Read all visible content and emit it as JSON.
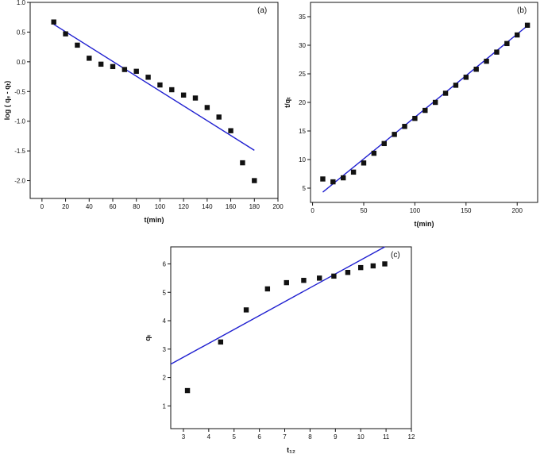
{
  "chart_data": [
    {
      "type": "scatter",
      "panel_label": "(a)",
      "xlabel": "t(min)",
      "ylabel": "log ( qₑ - qₜ)",
      "xlim": [
        -10,
        200
      ],
      "ylim": [
        -2.3,
        1.0
      ],
      "x_ticks": [
        0,
        20,
        40,
        60,
        80,
        100,
        120,
        140,
        160,
        180,
        200
      ],
      "y_ticks": [
        1.0,
        0.5,
        0.0,
        -0.5,
        -1.0,
        -1.5,
        -2.0
      ],
      "y_tick_labels": [
        "1.0",
        "0.5",
        "0.0",
        "-0.5",
        "-1.0",
        "-1.5",
        "-2.0"
      ],
      "grid": false,
      "series": [
        {
          "x": [
            10,
            20,
            30,
            40,
            50,
            60,
            70,
            80,
            90,
            100,
            110,
            120,
            130,
            140,
            150,
            160,
            170,
            180
          ],
          "y": [
            0.67,
            0.47,
            0.28,
            0.06,
            -0.04,
            -0.08,
            -0.13,
            -0.16,
            -0.26,
            -0.39,
            -0.47,
            -0.56,
            -0.61,
            -0.77,
            -0.93,
            -1.16,
            -1.7,
            -2.0
          ]
        }
      ],
      "fit_line": {
        "x": [
          10,
          180
        ],
        "y": [
          0.63,
          -1.49
        ],
        "color": "#1f1fd0"
      }
    },
    {
      "type": "scatter",
      "panel_label": "(b)",
      "xlabel": "t(min)",
      "ylabel": "t/qₜ",
      "xlim": [
        -2,
        220
      ],
      "ylim": [
        2.5,
        37.5
      ],
      "x_ticks": [
        0,
        50,
        100,
        150,
        200
      ],
      "y_ticks": [
        5,
        10,
        15,
        20,
        25,
        30,
        35
      ],
      "y_tick_labels": [
        "5",
        "10",
        "15",
        "20",
        "25",
        "30",
        "35"
      ],
      "grid": false,
      "series": [
        {
          "x": [
            10,
            20,
            30,
            40,
            50,
            60,
            70,
            80,
            90,
            100,
            110,
            120,
            130,
            140,
            150,
            160,
            170,
            180,
            190,
            200,
            210
          ],
          "y": [
            6.6,
            6.1,
            6.8,
            7.8,
            9.4,
            11.1,
            12.8,
            14.4,
            15.8,
            17.2,
            18.6,
            20.0,
            21.6,
            23.0,
            24.4,
            25.8,
            27.2,
            28.8,
            30.3,
            31.8,
            33.5
          ]
        }
      ],
      "fit_line": {
        "x": [
          10,
          212
        ],
        "y": [
          4.3,
          33.7
        ],
        "color": "#1f1fd0"
      }
    },
    {
      "type": "scatter",
      "panel_label": "(c)",
      "xlabel": "t₁₂",
      "ylabel": "qₜ",
      "xlim": [
        2.5,
        12
      ],
      "ylim": [
        0.2,
        6.6
      ],
      "x_ticks": [
        3,
        4,
        5,
        6,
        7,
        8,
        9,
        10,
        11,
        12
      ],
      "y_ticks": [
        1,
        2,
        3,
        4,
        5,
        6
      ],
      "y_tick_labels": [
        "1",
        "2",
        "3",
        "4",
        "5",
        "6"
      ],
      "grid": false,
      "series": [
        {
          "x": [
            3.16,
            4.47,
            5.48,
            6.32,
            7.07,
            7.75,
            8.37,
            8.94,
            9.49,
            10.0,
            10.49,
            10.95
          ],
          "y": [
            1.54,
            3.25,
            4.38,
            5.12,
            5.34,
            5.42,
            5.5,
            5.57,
            5.7,
            5.87,
            5.93,
            6.0
          ]
        }
      ],
      "fit_line": {
        "x": [
          2.5,
          10.95
        ],
        "y": [
          2.47,
          6.6
        ],
        "color": "#1f1fd0"
      }
    }
  ]
}
